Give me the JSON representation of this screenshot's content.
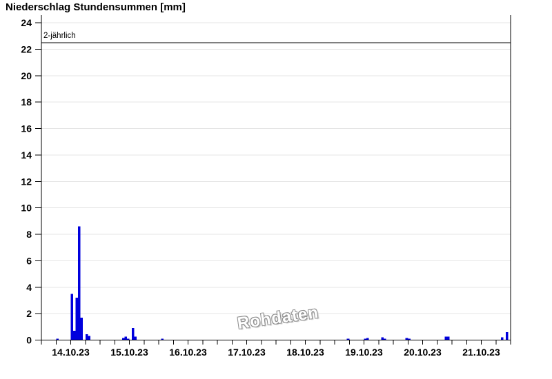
{
  "colors": {
    "background": "#ffffff",
    "bar": "#0000dd",
    "axis": "#000000",
    "grid": "#e4e4e4",
    "threshold_line": "#000000",
    "text": "#000000",
    "watermark_outline": "#909090"
  },
  "chart_data": {
    "type": "bar",
    "title": "Niederschlag Stundensummen [mm]",
    "unit": "mm",
    "watermark": "Rohdaten",
    "legend": "none",
    "grid": "horizontal",
    "x_axis": {
      "kind": "time",
      "start": "14.10.23 00:00",
      "hours_total": 192,
      "tick_interval_hours": 6,
      "day_labels": [
        "14.10.23",
        "15.10.23",
        "16.10.23",
        "17.10.23",
        "18.10.23",
        "19.10.23",
        "20.10.23",
        "21.10.23"
      ]
    },
    "y_axis": {
      "min": 0,
      "max": 24,
      "tick_step": 2,
      "tick_labels": [
        "0",
        "2",
        "4",
        "6",
        "8",
        "10",
        "12",
        "14",
        "16",
        "18",
        "20",
        "22",
        "24"
      ]
    },
    "threshold": {
      "label": "2-jährlich",
      "value": 22.5
    },
    "bars": [
      {
        "hour": 6,
        "value": 0.1
      },
      {
        "hour": 12,
        "value": 3.5
      },
      {
        "hour": 13,
        "value": 0.7
      },
      {
        "hour": 14,
        "value": 3.2
      },
      {
        "hour": 15,
        "value": 8.6
      },
      {
        "hour": 16,
        "value": 1.7
      },
      {
        "hour": 18,
        "value": 0.45
      },
      {
        "hour": 19,
        "value": 0.3
      },
      {
        "hour": 33,
        "value": 0.15
      },
      {
        "hour": 34,
        "value": 0.25
      },
      {
        "hour": 35,
        "value": 0.1
      },
      {
        "hour": 37,
        "value": 0.9
      },
      {
        "hour": 38,
        "value": 0.25
      },
      {
        "hour": 49,
        "value": 0.1
      },
      {
        "hour": 125,
        "value": 0.1
      },
      {
        "hour": 132,
        "value": 0.1
      },
      {
        "hour": 133,
        "value": 0.15
      },
      {
        "hour": 139,
        "value": 0.2
      },
      {
        "hour": 140,
        "value": 0.1
      },
      {
        "hour": 149,
        "value": 0.15
      },
      {
        "hour": 150,
        "value": 0.1
      },
      {
        "hour": 165,
        "value": 0.25
      },
      {
        "hour": 166,
        "value": 0.25
      },
      {
        "hour": 188,
        "value": 0.2
      },
      {
        "hour": 190,
        "value": 0.6
      }
    ]
  }
}
